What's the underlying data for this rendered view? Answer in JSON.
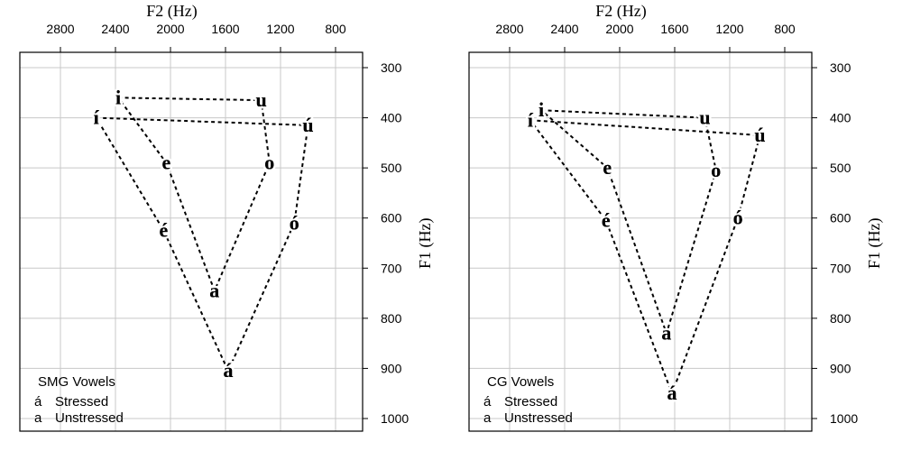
{
  "chart_data": [
    {
      "type": "scatter",
      "panel": "left",
      "xlabel": "F2 (Hz)",
      "ylabel": "F1 (Hz)",
      "x_ticks": [
        2800,
        2400,
        2000,
        1600,
        1200,
        800
      ],
      "y_ticks": [
        300,
        400,
        500,
        600,
        700,
        800,
        900,
        1000
      ],
      "xlim": [
        3100,
        700
      ],
      "ylim": [
        1000,
        300
      ],
      "x_reversed": true,
      "y_reversed": true,
      "grid": true,
      "legend": {
        "position": "bottom-left",
        "title": "SMG Vowels",
        "stressed": {
          "symbol": "á",
          "label": "Stressed"
        },
        "unstressed": {
          "symbol": "a",
          "label": "Unstressed"
        }
      },
      "points": [
        {
          "label": "i",
          "f2": 2380,
          "f1": 360
        },
        {
          "label": "u",
          "f2": 1340,
          "f1": 365
        },
        {
          "label": "í",
          "f2": 2540,
          "f1": 400
        },
        {
          "label": "ú",
          "f2": 1000,
          "f1": 415
        },
        {
          "label": "e",
          "f2": 2030,
          "f1": 490
        },
        {
          "label": "o",
          "f2": 1280,
          "f1": 490
        },
        {
          "label": "é",
          "f2": 2050,
          "f1": 625
        },
        {
          "label": "ó",
          "f2": 1100,
          "f1": 610
        },
        {
          "label": "a",
          "f2": 1680,
          "f1": 745
        },
        {
          "label": "á",
          "f2": 1580,
          "f1": 905
        }
      ],
      "series": [
        {
          "name": "Unstressed",
          "polygon": [
            "i",
            "u",
            "o",
            "a",
            "e"
          ]
        },
        {
          "name": "Stressed",
          "polygon": [
            "í",
            "ú",
            "ó",
            "á",
            "é"
          ]
        }
      ]
    },
    {
      "type": "scatter",
      "panel": "right",
      "xlabel": "F2 (Hz)",
      "ylabel": "F1 (Hz)",
      "x_ticks": [
        2800,
        2400,
        2000,
        1600,
        1200,
        800
      ],
      "y_ticks": [
        300,
        400,
        500,
        600,
        700,
        800,
        900,
        1000
      ],
      "xlim": [
        3100,
        700
      ],
      "ylim": [
        1000,
        300
      ],
      "x_reversed": true,
      "y_reversed": true,
      "grid": true,
      "legend": {
        "position": "bottom-left",
        "title": "CG Vowels",
        "stressed": {
          "symbol": "á",
          "label": "Stressed"
        },
        "unstressed": {
          "symbol": "a",
          "label": "Unstressed"
        }
      },
      "points": [
        {
          "label": "i",
          "f2": 2570,
          "f1": 385
        },
        {
          "label": "u",
          "f2": 1380,
          "f1": 400
        },
        {
          "label": "í",
          "f2": 2650,
          "f1": 405
        },
        {
          "label": "ú",
          "f2": 980,
          "f1": 435
        },
        {
          "label": "e",
          "f2": 2090,
          "f1": 500
        },
        {
          "label": "o",
          "f2": 1300,
          "f1": 505
        },
        {
          "label": "é",
          "f2": 2100,
          "f1": 605
        },
        {
          "label": "ó",
          "f2": 1140,
          "f1": 600
        },
        {
          "label": "a",
          "f2": 1660,
          "f1": 830
        },
        {
          "label": "á",
          "f2": 1620,
          "f1": 950
        }
      ],
      "series": [
        {
          "name": "Unstressed",
          "polygon": [
            "i",
            "u",
            "o",
            "a",
            "e"
          ]
        },
        {
          "name": "Stressed",
          "polygon": [
            "í",
            "ú",
            "ó",
            "á",
            "é"
          ]
        }
      ]
    }
  ]
}
